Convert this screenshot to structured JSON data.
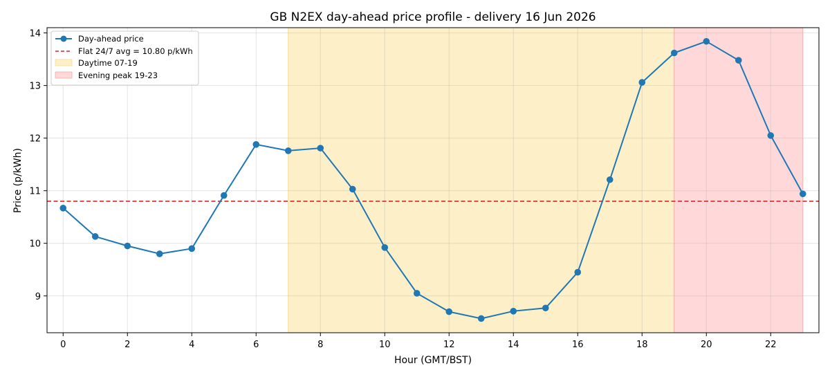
{
  "chart_data": {
    "type": "line",
    "title": "GB N2EX day-ahead price profile - delivery 16 Jun 2026",
    "xlabel": "Hour (GMT/BST)",
    "ylabel": "Price (p/kWh)",
    "xlim": [
      -0.5,
      23.5
    ],
    "ylim": [
      8.3,
      14.1
    ],
    "xticks": [
      0,
      2,
      4,
      6,
      8,
      10,
      12,
      14,
      16,
      18,
      20,
      22
    ],
    "yticks": [
      9,
      10,
      11,
      12,
      13,
      14
    ],
    "grid": true,
    "legend_position": "top-left",
    "x": [
      0,
      1,
      2,
      3,
      4,
      5,
      6,
      7,
      8,
      9,
      10,
      11,
      12,
      13,
      14,
      15,
      16,
      17,
      18,
      19,
      20,
      21,
      22,
      23
    ],
    "series": [
      {
        "name": "Day-ahead price",
        "color": "#1f77b4",
        "values": [
          10.67,
          10.13,
          9.95,
          9.8,
          9.9,
          10.91,
          11.88,
          11.76,
          11.81,
          11.03,
          9.92,
          9.05,
          8.7,
          8.57,
          8.71,
          8.77,
          9.45,
          11.21,
          13.06,
          13.62,
          13.84,
          13.48,
          12.05,
          10.94
        ]
      }
    ],
    "reference_line": {
      "label": "Flat 24/7 avg = 10.80 p/kWh",
      "value": 10.8,
      "color": "#d62728",
      "style": "dashed"
    },
    "shaded_regions": [
      {
        "label": "Daytime 07-19",
        "x_start": 7,
        "x_end": 19,
        "color": "#fdf0c9"
      },
      {
        "label": "Evening peak 19-23",
        "x_start": 19,
        "x_end": 23,
        "color": "#ffd9d9"
      }
    ]
  }
}
